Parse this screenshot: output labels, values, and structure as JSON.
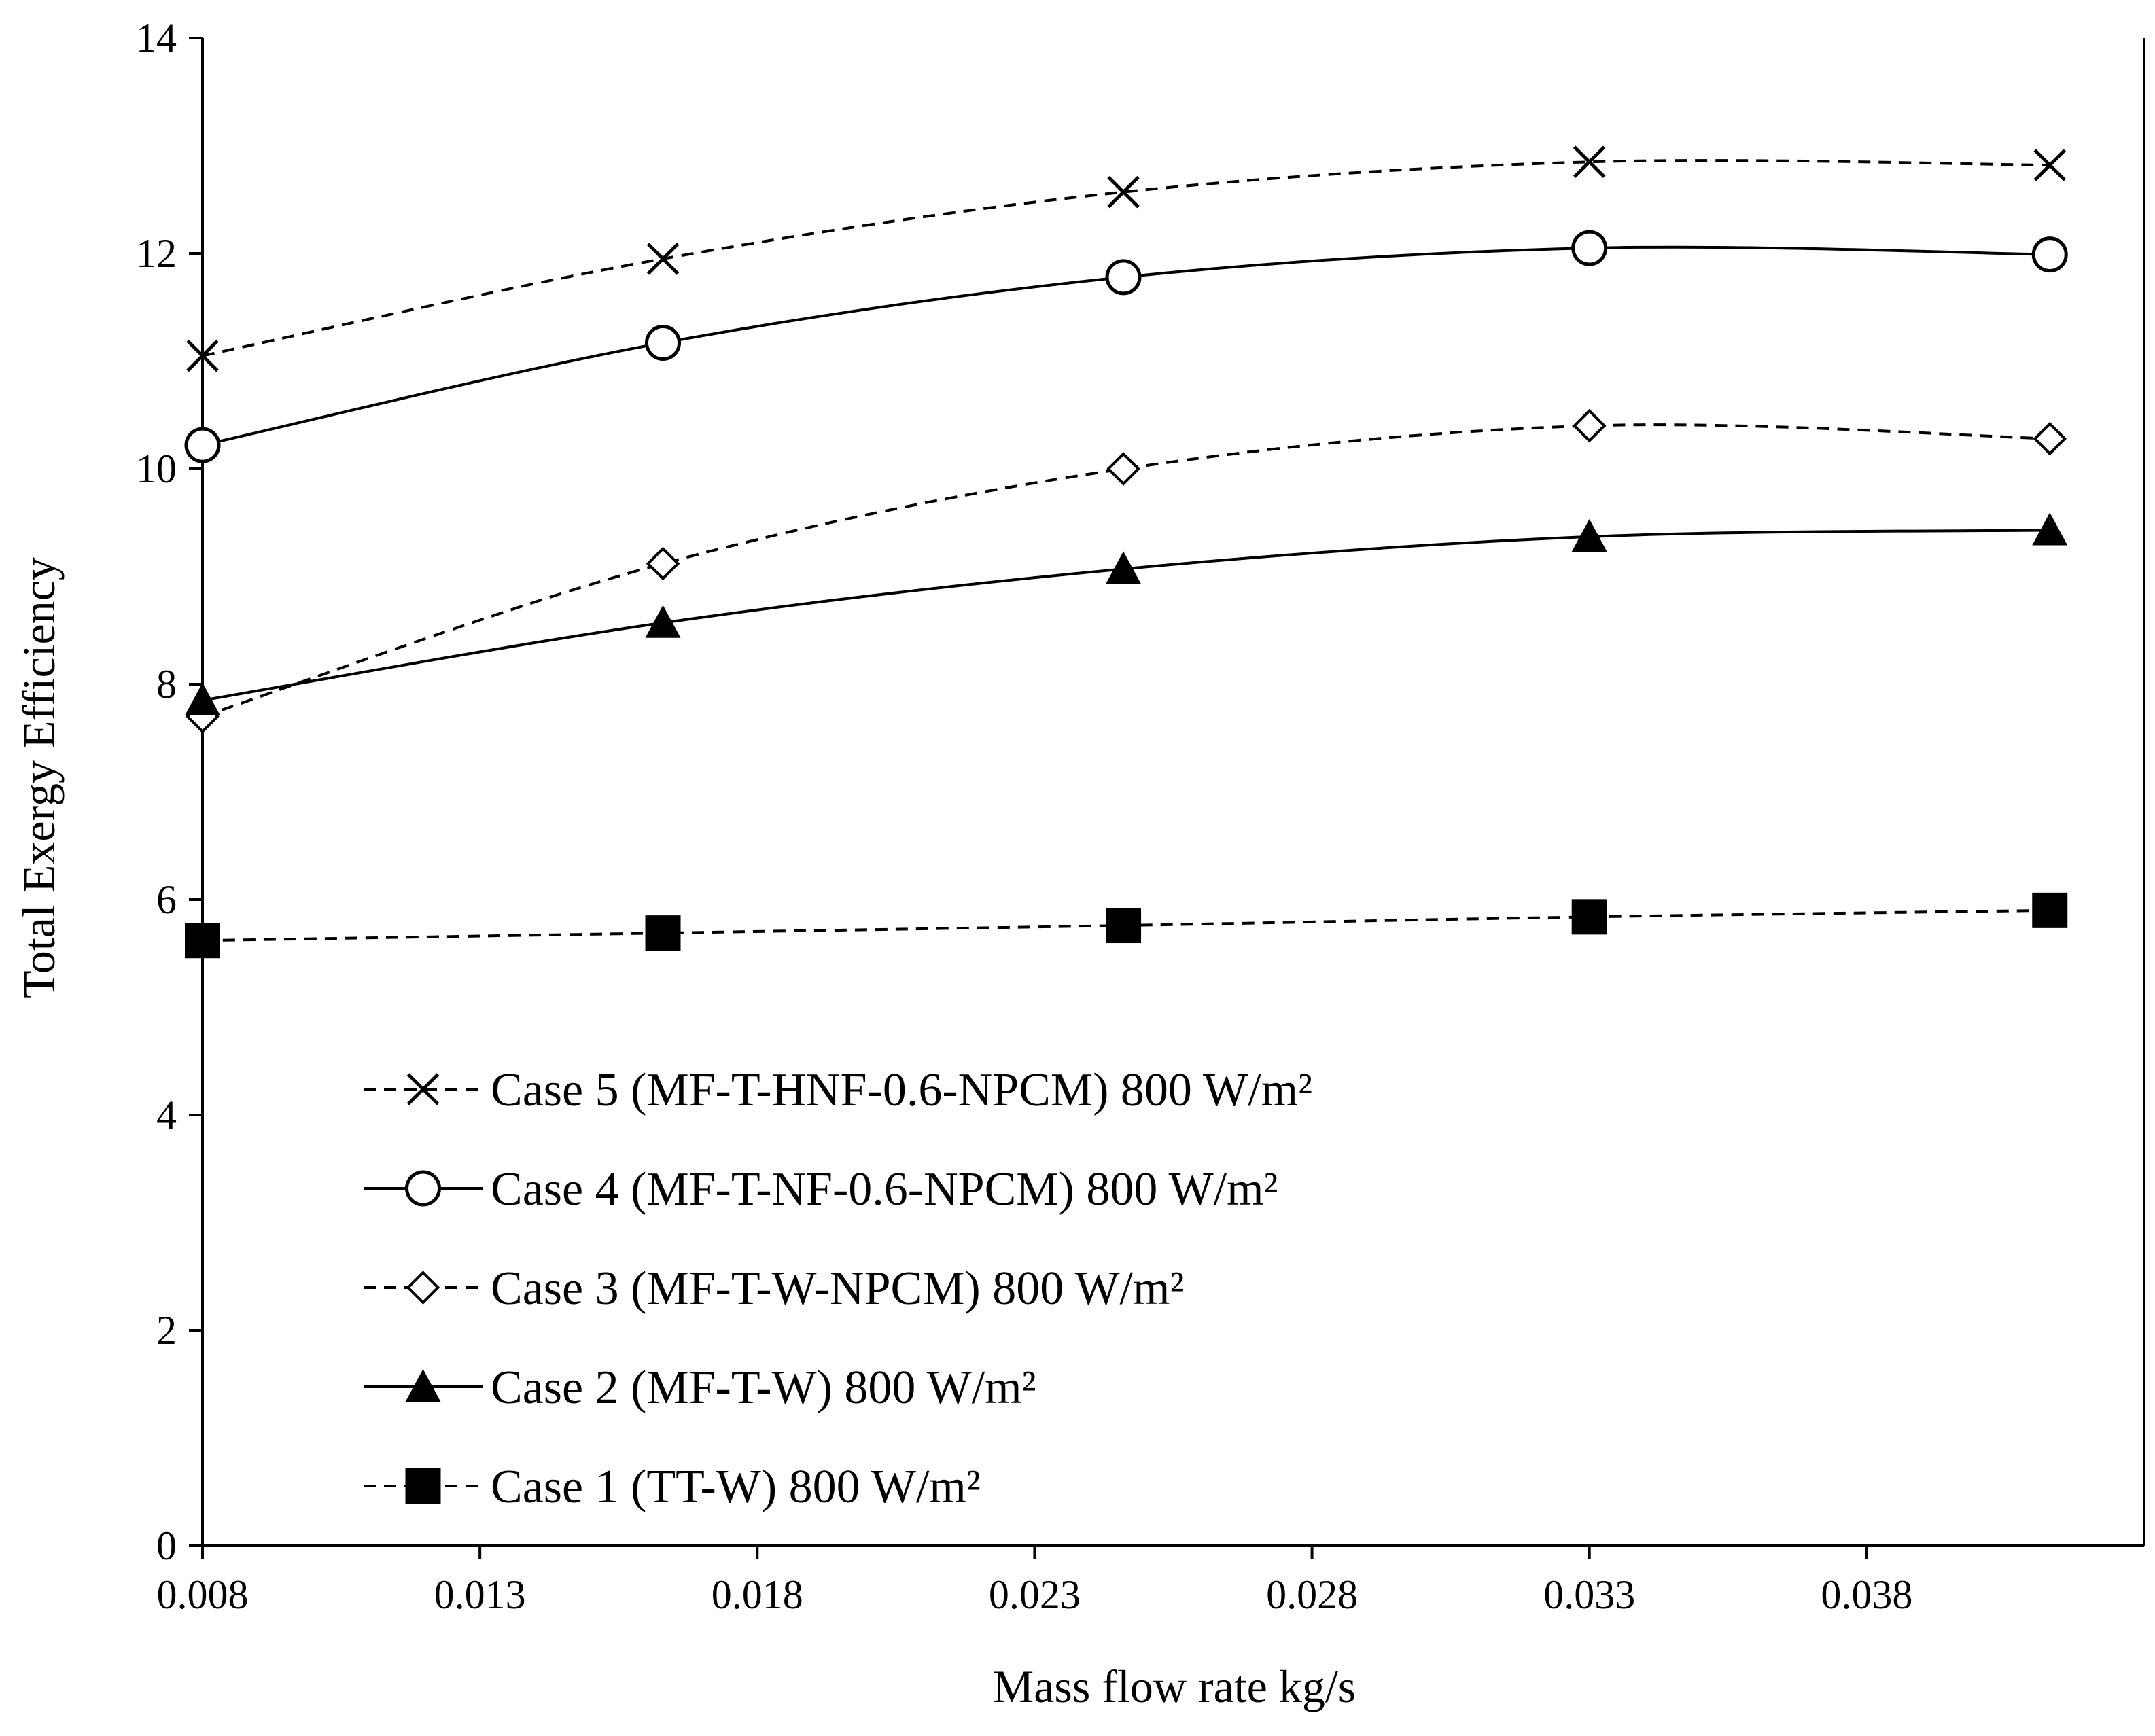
{
  "chart_data": {
    "type": "line",
    "xlabel": "Mass flow rate kg/s",
    "ylabel": "Total Exergy Efficiency",
    "xlim": [
      0.008,
      0.043
    ],
    "ylim": [
      0,
      14
    ],
    "x_ticks": [
      "0.008",
      "0.013",
      "0.018",
      "0.023",
      "0.028",
      "0.033",
      "0.038"
    ],
    "y_ticks": [
      "0",
      "2",
      "4",
      "6",
      "8",
      "10",
      "12",
      "14"
    ],
    "x": [
      0.008,
      0.0163,
      0.0246,
      0.033,
      0.0413
    ],
    "grid": false,
    "legend_position": "bottom-left",
    "series": [
      {
        "name": "Case 5 (MF-T-HNF-0.6-NPCM) 800 W/m²",
        "marker": "x",
        "dash": "dashed",
        "values": [
          11.05,
          11.95,
          12.57,
          12.85,
          12.82
        ]
      },
      {
        "name": "Case 4 (MF-T-NF-0.6-NPCM) 800 W/m²",
        "marker": "circle-open",
        "dash": "solid",
        "values": [
          10.22,
          11.17,
          11.78,
          12.05,
          11.99
        ]
      },
      {
        "name": "Case 3 (MF-T-W-NPCM) 800 W/m²",
        "marker": "diamond-open",
        "dash": "dashed",
        "values": [
          7.7,
          9.12,
          10.0,
          10.4,
          10.28
        ]
      },
      {
        "name": "Case 2 (MF-T-W) 800 W/m²",
        "marker": "triangle-filled",
        "dash": "solid",
        "values": [
          7.85,
          8.57,
          9.07,
          9.37,
          9.43
        ]
      },
      {
        "name": "Case 1 (TT-W) 800 W/m²",
        "marker": "square-filled",
        "dash": "dashed",
        "values": [
          5.62,
          5.69,
          5.76,
          5.84,
          5.9
        ]
      }
    ]
  }
}
